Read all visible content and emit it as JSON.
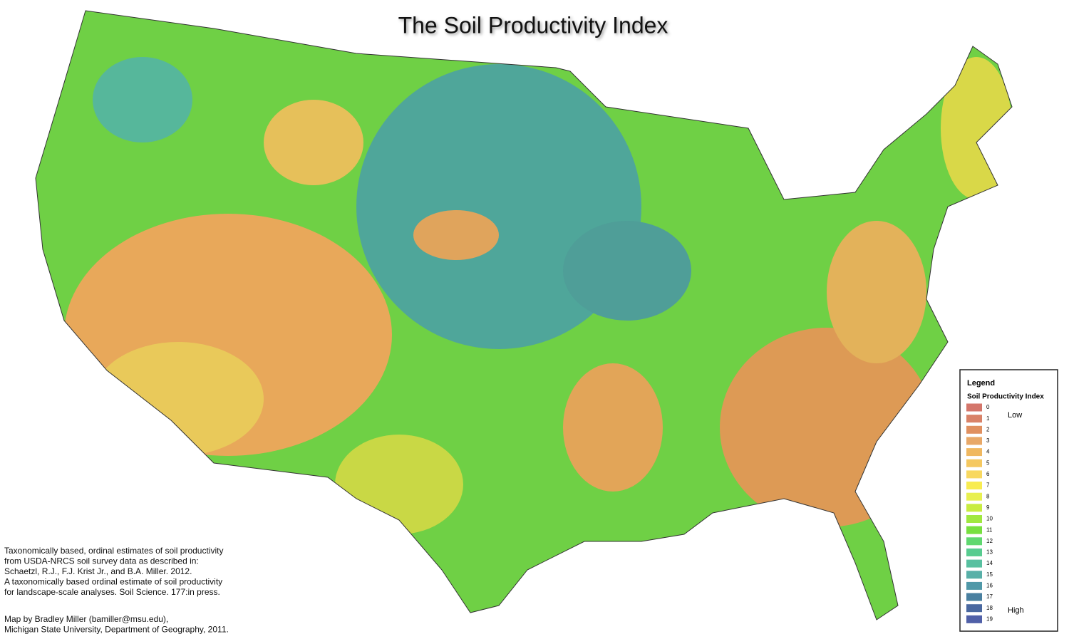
{
  "title": "The Soil Productivity Index",
  "legend": {
    "title": "Legend",
    "subtitle": "Soil Productivity Index",
    "low": "Low",
    "high": "High",
    "items": [
      {
        "label": "0",
        "color": "#d4766b"
      },
      {
        "label": "1",
        "color": "#d98268"
      },
      {
        "label": "2",
        "color": "#e09060"
      },
      {
        "label": "3",
        "color": "#e8a868"
      },
      {
        "label": "4",
        "color": "#f0b860"
      },
      {
        "label": "5",
        "color": "#f5c860"
      },
      {
        "label": "6",
        "color": "#f8d860"
      },
      {
        "label": "7",
        "color": "#f8ec50"
      },
      {
        "label": "8",
        "color": "#e8f050"
      },
      {
        "label": "9",
        "color": "#c8ec40"
      },
      {
        "label": "10",
        "color": "#a0e840"
      },
      {
        "label": "11",
        "color": "#78e040"
      },
      {
        "label": "12",
        "color": "#60d870"
      },
      {
        "label": "13",
        "color": "#58cc90"
      },
      {
        "label": "14",
        "color": "#58c0a0"
      },
      {
        "label": "15",
        "color": "#58b0a8"
      },
      {
        "label": "16",
        "color": "#5098a8"
      },
      {
        "label": "17",
        "color": "#4a80a0"
      },
      {
        "label": "18",
        "color": "#4a68a0"
      },
      {
        "label": "19",
        "color": "#5060a8"
      }
    ]
  },
  "notes": {
    "citation": [
      "Taxonomically based, ordinal estimates of soil productivity",
      "from USDA-NRCS soil survey data as described in:",
      "Schaetzl, R.J., F.J. Krist Jr., and B.A. Miller. 2012.",
      "A taxonomically based ordinal estimate of soil productivity",
      "for landscape-scale analyses. Soil Science. 177:in press."
    ],
    "credit": [
      "Map by Bradley Miller (bamiller@msu.edu),",
      "Michigan State University, Department of Geography, 2011."
    ]
  }
}
